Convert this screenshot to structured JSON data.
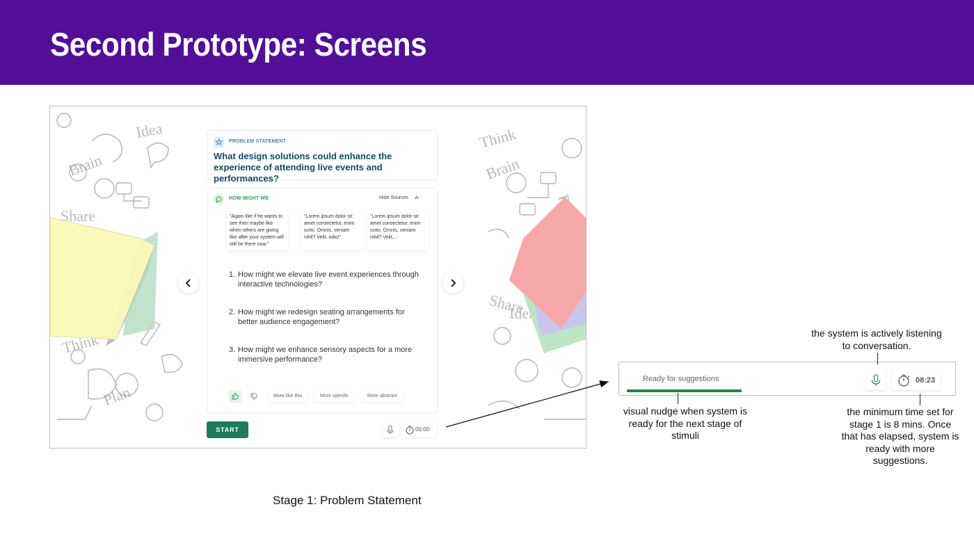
{
  "slide": {
    "title": "Second Prototype: Screens",
    "caption": "Stage 1: Problem Statement"
  },
  "screen": {
    "problem_statement": {
      "label": "PROBLEM STATEMENT",
      "text": "What design solutions could enhance the experience of attending live events and performances?"
    },
    "how_might_we": {
      "label": "HOW MIGHT WE",
      "hide_sources": "Hide Sources",
      "sources": [
        "\"Again like if he wants to see then maybe like when others are giving like after your system will still be there now.\"",
        "\"Lorem ipsum dolor sit amet consectetur, enim iusto. Omnis, veniam nihil? Velit, odio!\"",
        "\"Lorem ipsum dolor sit amet consectetur, enim iusto. Omnis, veniam nihil? Velit,..."
      ],
      "questions": [
        {
          "num": "1.",
          "text": "How might we elevate live event experiences through interactive technologies?"
        },
        {
          "num": "2.",
          "text": "How might we redesign seating arrangements for better audience engagement?"
        },
        {
          "num": "3.",
          "text": "How might we enhance sensory aspects for a more immersive performance?"
        }
      ],
      "chips": [
        "More like this",
        "More specific",
        "More abstract"
      ]
    },
    "start_label": "START",
    "timer": "00:00",
    "icons": {
      "prev": "chevron-left-icon",
      "next": "chevron-right-icon",
      "mic": "microphone-icon",
      "timer": "stopwatch-icon"
    }
  },
  "zoom": {
    "ready_text": "Ready for suggestions",
    "timer": "08:23",
    "ready_progress": 1.0
  },
  "annotations": {
    "listening": "the system is actively listening to conversation.",
    "nudge": "visual nudge when system is ready for the next stage of stimuli",
    "min_time": "the minimum time set for stage 1 is 8 mins. Once that has elapsed, system is ready with more suggestions."
  },
  "colors": {
    "header_bg": "#520e96",
    "start_button": "#1d7a5d",
    "ready_bar": "#1b8a3e",
    "problem_text": "#134a63",
    "hmw_label": "#2a9a55"
  }
}
